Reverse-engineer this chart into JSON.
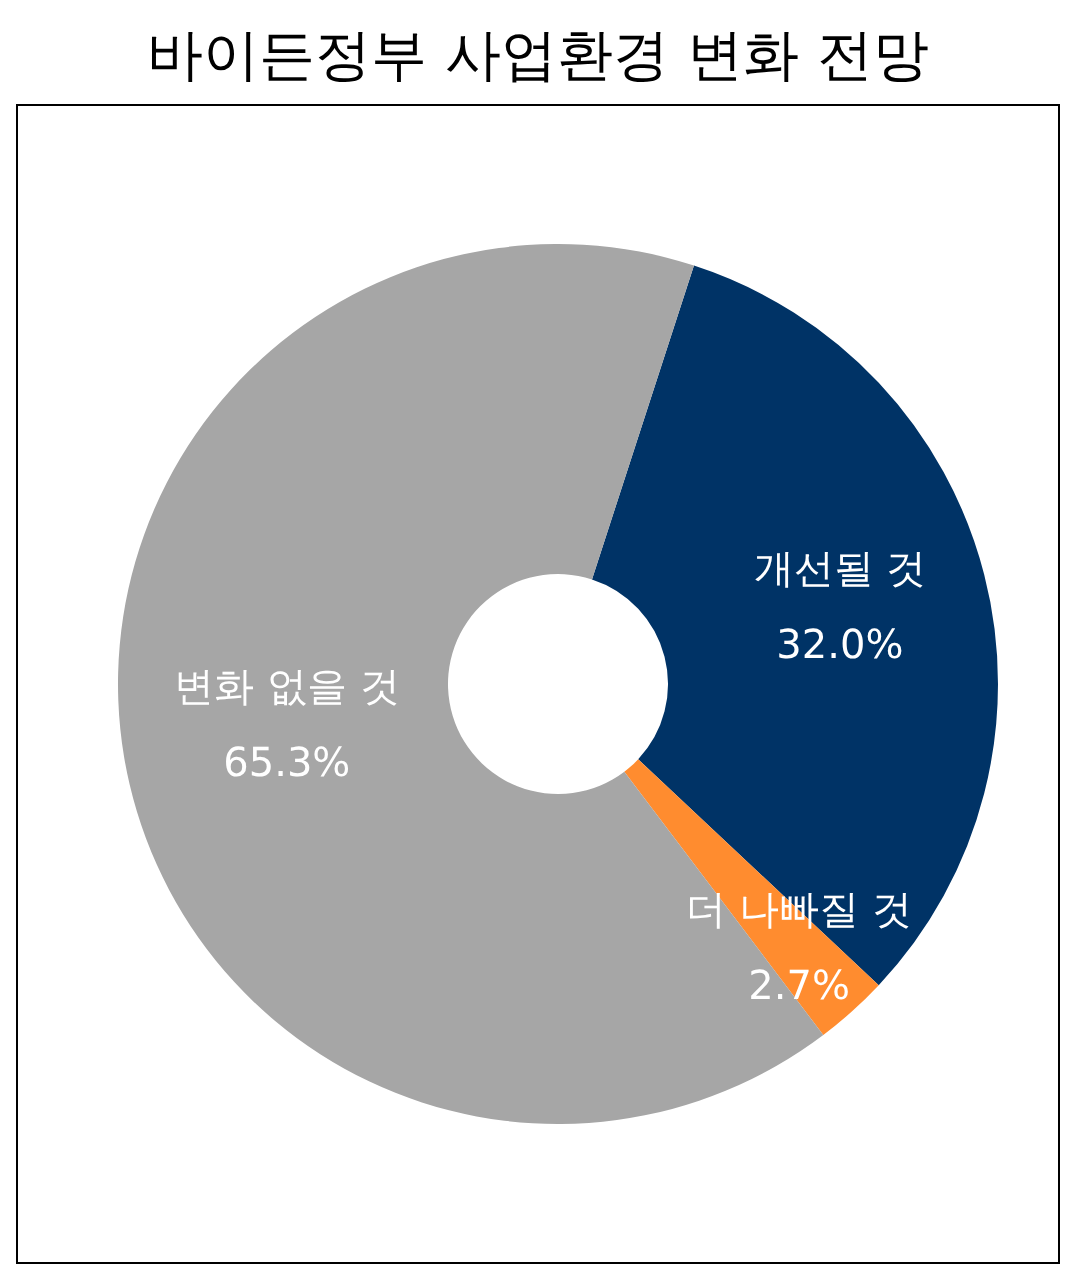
{
  "chart_data": {
    "type": "donut",
    "title": "바이든정부 사업환경 변화 전망",
    "categories": [
      "개선될 것",
      "더 나빠질 것",
      "변화 없을 것"
    ],
    "values": [
      32.0,
      2.7,
      65.3
    ],
    "colors": [
      "#003366",
      "#ff8c2f",
      "#a6a6a6"
    ],
    "value_labels": [
      "32.0%",
      "2.7%",
      "65.3%"
    ],
    "legend": false
  }
}
